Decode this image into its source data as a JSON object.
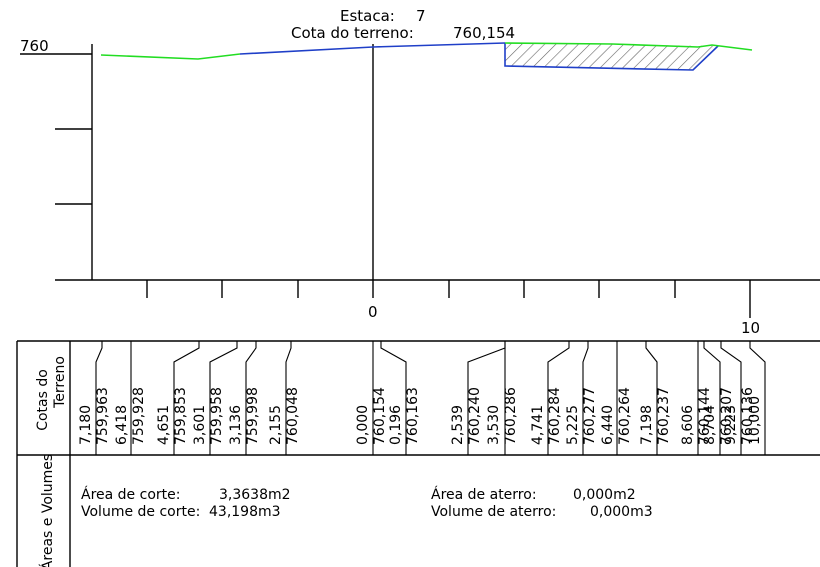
{
  "header": {
    "estaca_label": "Estaca:",
    "estaca_value": "7",
    "cota_label": "Cota do terreno:",
    "cota_value": "760,154"
  },
  "profile": {
    "elevation_label": "760",
    "x_labels": [
      "0",
      "10"
    ],
    "colors": {
      "terrain_green": "#22dd22",
      "section_blue": "#1f3fc8",
      "hatch": "#666666",
      "grid": "#000000"
    }
  },
  "table": {
    "row1_title_line1": "Cotas do",
    "row1_title_line2": "Terreno",
    "row2_title": "Áreas e Volumes",
    "groups": [
      [
        "7,180",
        "759,963"
      ],
      [
        "6,418",
        "759,928"
      ],
      [
        "4,651",
        "759,853"
      ],
      [
        "3,601",
        "759,958"
      ],
      [
        "3,136",
        "759,998"
      ],
      [
        "2,155",
        "760,048"
      ],
      [
        "0,000",
        "760,154"
      ],
      [
        "0,196",
        "760,163"
      ],
      [
        "2,539",
        "760,240"
      ],
      [
        "3,530",
        "760,286"
      ],
      [
        "4,741",
        "760,284"
      ],
      [
        "5,225",
        "760,277"
      ],
      [
        "6,440",
        "760,264"
      ],
      [
        "7,198",
        "760,237"
      ],
      [
        "8,606",
        "760,144"
      ],
      [
        "8,704",
        "760,207"
      ],
      [
        "9,223",
        "760,136"
      ],
      [
        "10,000",
        ""
      ]
    ],
    "corte_area_label": "Área de corte:",
    "corte_area_value": "3,3638m2",
    "corte_volume_label": "Volume de corte:",
    "corte_volume_value": "43,198m3",
    "aterro_area_label": "Área de aterro:",
    "aterro_area_value": "0,000m2",
    "aterro_volume_label": "Volume de aterro:",
    "aterro_volume_value": "0,000m3"
  }
}
